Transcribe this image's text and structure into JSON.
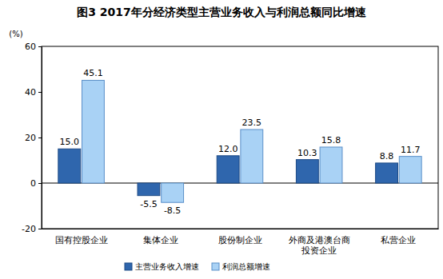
{
  "chart_data": {
    "type": "bar",
    "title": "图3 2017年分经济类型主营业务收入与利润总额同比增速",
    "y_label": "(%)",
    "categories": [
      "国有控股企业",
      "集体企业",
      "股份制企业",
      "外商及港澳台商投资企业",
      "私营企业"
    ],
    "series": [
      {
        "name": "主营业务收入增速",
        "color": "#2f66ad",
        "values": [
          15.0,
          -5.5,
          12.0,
          10.3,
          8.8
        ],
        "value_labels": [
          "15.0",
          "-5.5",
          "12.0",
          "10.3",
          "8.8"
        ]
      },
      {
        "name": "利润总额增速",
        "color": "#a9d2f5",
        "values": [
          45.1,
          -8.5,
          23.5,
          15.8,
          11.7
        ]
      }
    ],
    "ylim": [
      -20,
      60
    ],
    "yticks": [
      -20,
      0,
      20,
      40,
      60
    ],
    "grid": false,
    "legend": "bottom",
    "data_labels": true
  }
}
